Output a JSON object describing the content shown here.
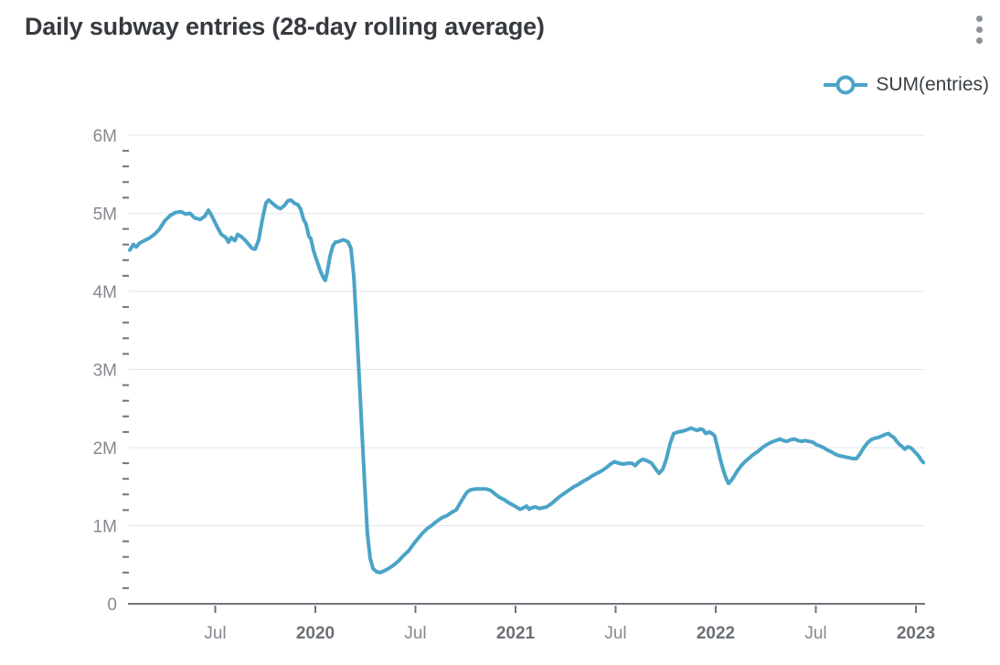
{
  "page": {
    "title": "Daily subway entries (28-day rolling average)",
    "kebab_menu": "more-options"
  },
  "colors": {
    "line": "#4BA4C7",
    "legend_marker": "#4BA4C7",
    "grid": "#E4E6F1",
    "axis": "#6E757C",
    "tick_label": "#85898F",
    "year_label": "#6B7075",
    "title_text": "#363A3F",
    "legend_text": "#3A3F44",
    "kebab_dots": "#8A939A"
  },
  "chart_data": {
    "type": "line",
    "title": "Daily subway entries (28-day rolling average)",
    "xlabel": "",
    "ylabel": "",
    "unit": "millions of entries",
    "grid": "horizontal-major",
    "legend_position": "top-right",
    "x_domain": [
      2019.064,
      2023.037
    ],
    "ylim": [
      0,
      6
    ],
    "y_major_ticks": [
      {
        "v": 0,
        "label": "0"
      },
      {
        "v": 1,
        "label": "1M"
      },
      {
        "v": 2,
        "label": "2M"
      },
      {
        "v": 3,
        "label": "3M"
      },
      {
        "v": 4,
        "label": "4M"
      },
      {
        "v": 5,
        "label": "5M"
      },
      {
        "v": 6,
        "label": "6M"
      }
    ],
    "y_minor_tick_step": 0.2,
    "x_ticks": [
      {
        "t": 2019.5,
        "label": "Jul",
        "bold": false
      },
      {
        "t": 2020.0,
        "label": "2020",
        "bold": true
      },
      {
        "t": 2020.5,
        "label": "Jul",
        "bold": false
      },
      {
        "t": 2021.0,
        "label": "2021",
        "bold": true
      },
      {
        "t": 2021.5,
        "label": "Jul",
        "bold": false
      },
      {
        "t": 2022.0,
        "label": "2022",
        "bold": true
      },
      {
        "t": 2022.5,
        "label": "Jul",
        "bold": false
      },
      {
        "t": 2023.0,
        "label": "2023",
        "bold": true
      }
    ],
    "series": [
      {
        "name": "SUM(entries)",
        "points": [
          [
            2019.073,
            4.53
          ],
          [
            2019.091,
            4.6
          ],
          [
            2019.105,
            4.57
          ],
          [
            2019.123,
            4.62
          ],
          [
            2019.146,
            4.65
          ],
          [
            2019.169,
            4.68
          ],
          [
            2019.196,
            4.73
          ],
          [
            2019.219,
            4.79
          ],
          [
            2019.247,
            4.9
          ],
          [
            2019.274,
            4.97
          ],
          [
            2019.301,
            5.01
          ],
          [
            2019.329,
            5.02
          ],
          [
            2019.352,
            4.99
          ],
          [
            2019.374,
            5.0
          ],
          [
            2019.397,
            4.94
          ],
          [
            2019.425,
            4.92
          ],
          [
            2019.447,
            4.96
          ],
          [
            2019.466,
            5.04
          ],
          [
            2019.484,
            4.96
          ],
          [
            2019.507,
            4.84
          ],
          [
            2019.53,
            4.73
          ],
          [
            2019.553,
            4.69
          ],
          [
            2019.566,
            4.63
          ],
          [
            2019.58,
            4.69
          ],
          [
            2019.598,
            4.65
          ],
          [
            2019.612,
            4.73
          ],
          [
            2019.63,
            4.7
          ],
          [
            2019.648,
            4.66
          ],
          [
            2019.667,
            4.6
          ],
          [
            2019.685,
            4.55
          ],
          [
            2019.699,
            4.54
          ],
          [
            2019.717,
            4.66
          ],
          [
            2019.735,
            4.92
          ],
          [
            2019.753,
            5.13
          ],
          [
            2019.767,
            5.17
          ],
          [
            2019.785,
            5.13
          ],
          [
            2019.808,
            5.08
          ],
          [
            2019.826,
            5.06
          ],
          [
            2019.845,
            5.1
          ],
          [
            2019.863,
            5.16
          ],
          [
            2019.877,
            5.17
          ],
          [
            2019.895,
            5.13
          ],
          [
            2019.913,
            5.11
          ],
          [
            2019.927,
            5.05
          ],
          [
            2019.941,
            4.92
          ],
          [
            2019.954,
            4.86
          ],
          [
            2019.968,
            4.7
          ],
          [
            2019.977,
            4.68
          ],
          [
            2019.991,
            4.52
          ],
          [
            2020.009,
            4.38
          ],
          [
            2020.027,
            4.25
          ],
          [
            2020.041,
            4.17
          ],
          [
            2020.05,
            4.14
          ],
          [
            2020.059,
            4.24
          ],
          [
            2020.073,
            4.45
          ],
          [
            2020.087,
            4.58
          ],
          [
            2020.1,
            4.63
          ],
          [
            2020.119,
            4.64
          ],
          [
            2020.137,
            4.66
          ],
          [
            2020.151,
            4.65
          ],
          [
            2020.164,
            4.63
          ],
          [
            2020.178,
            4.55
          ],
          [
            2020.192,
            4.2
          ],
          [
            2020.205,
            3.6
          ],
          [
            2020.219,
            2.9
          ],
          [
            2020.233,
            2.2
          ],
          [
            2020.247,
            1.5
          ],
          [
            2020.26,
            0.9
          ],
          [
            2020.274,
            0.58
          ],
          [
            2020.288,
            0.45
          ],
          [
            2020.306,
            0.41
          ],
          [
            2020.324,
            0.4
          ],
          [
            2020.342,
            0.42
          ],
          [
            2020.365,
            0.45
          ],
          [
            2020.388,
            0.49
          ],
          [
            2020.416,
            0.55
          ],
          [
            2020.438,
            0.61
          ],
          [
            2020.466,
            0.68
          ],
          [
            2020.489,
            0.76
          ],
          [
            2020.511,
            0.83
          ],
          [
            2020.534,
            0.9
          ],
          [
            2020.557,
            0.96
          ],
          [
            2020.58,
            1.0
          ],
          [
            2020.603,
            1.05
          ],
          [
            2020.63,
            1.1
          ],
          [
            2020.658,
            1.13
          ],
          [
            2020.68,
            1.17
          ],
          [
            2020.703,
            1.2
          ],
          [
            2020.721,
            1.28
          ],
          [
            2020.74,
            1.36
          ],
          [
            2020.758,
            1.43
          ],
          [
            2020.776,
            1.46
          ],
          [
            2020.799,
            1.47
          ],
          [
            2020.826,
            1.47
          ],
          [
            2020.854,
            1.47
          ],
          [
            2020.877,
            1.45
          ],
          [
            2020.9,
            1.4
          ],
          [
            2020.922,
            1.36
          ],
          [
            2020.945,
            1.33
          ],
          [
            2020.968,
            1.29
          ],
          [
            2020.991,
            1.26
          ],
          [
            2021.009,
            1.23
          ],
          [
            2021.023,
            1.21
          ],
          [
            2021.041,
            1.23
          ],
          [
            2021.055,
            1.25
          ],
          [
            2021.068,
            1.21
          ],
          [
            2021.082,
            1.23
          ],
          [
            2021.1,
            1.24
          ],
          [
            2021.119,
            1.22
          ],
          [
            2021.137,
            1.23
          ],
          [
            2021.155,
            1.24
          ],
          [
            2021.178,
            1.28
          ],
          [
            2021.201,
            1.33
          ],
          [
            2021.224,
            1.38
          ],
          [
            2021.247,
            1.42
          ],
          [
            2021.269,
            1.46
          ],
          [
            2021.292,
            1.5
          ],
          [
            2021.315,
            1.53
          ],
          [
            2021.338,
            1.57
          ],
          [
            2021.361,
            1.6
          ],
          [
            2021.384,
            1.64
          ],
          [
            2021.406,
            1.67
          ],
          [
            2021.429,
            1.7
          ],
          [
            2021.452,
            1.74
          ],
          [
            2021.475,
            1.79
          ],
          [
            2021.493,
            1.82
          ],
          [
            2021.516,
            1.8
          ],
          [
            2021.539,
            1.79
          ],
          [
            2021.562,
            1.8
          ],
          [
            2021.58,
            1.8
          ],
          [
            2021.598,
            1.77
          ],
          [
            2021.616,
            1.82
          ],
          [
            2021.635,
            1.85
          ],
          [
            2021.658,
            1.83
          ],
          [
            2021.68,
            1.8
          ],
          [
            2021.699,
            1.73
          ],
          [
            2021.717,
            1.67
          ],
          [
            2021.735,
            1.72
          ],
          [
            2021.753,
            1.85
          ],
          [
            2021.772,
            2.05
          ],
          [
            2021.79,
            2.18
          ],
          [
            2021.813,
            2.2
          ],
          [
            2021.836,
            2.21
          ],
          [
            2021.858,
            2.23
          ],
          [
            2021.877,
            2.25
          ],
          [
            2021.895,
            2.23
          ],
          [
            2021.909,
            2.22
          ],
          [
            2021.922,
            2.24
          ],
          [
            2021.936,
            2.23
          ],
          [
            2021.95,
            2.18
          ],
          [
            2021.968,
            2.2
          ],
          [
            2021.982,
            2.18
          ],
          [
            2021.995,
            2.15
          ],
          [
            2022.009,
            2.0
          ],
          [
            2022.023,
            1.85
          ],
          [
            2022.037,
            1.72
          ],
          [
            2022.05,
            1.62
          ],
          [
            2022.064,
            1.54
          ],
          [
            2022.078,
            1.58
          ],
          [
            2022.091,
            1.63
          ],
          [
            2022.11,
            1.71
          ],
          [
            2022.128,
            1.77
          ],
          [
            2022.146,
            1.82
          ],
          [
            2022.164,
            1.86
          ],
          [
            2022.187,
            1.91
          ],
          [
            2022.21,
            1.95
          ],
          [
            2022.233,
            2.0
          ],
          [
            2022.256,
            2.04
          ],
          [
            2022.279,
            2.07
          ],
          [
            2022.301,
            2.09
          ],
          [
            2022.32,
            2.11
          ],
          [
            2022.338,
            2.09
          ],
          [
            2022.356,
            2.08
          ],
          [
            2022.374,
            2.1
          ],
          [
            2022.393,
            2.11
          ],
          [
            2022.411,
            2.09
          ],
          [
            2022.429,
            2.08
          ],
          [
            2022.447,
            2.09
          ],
          [
            2022.466,
            2.08
          ],
          [
            2022.484,
            2.07
          ],
          [
            2022.502,
            2.04
          ],
          [
            2022.521,
            2.02
          ],
          [
            2022.539,
            2.0
          ],
          [
            2022.557,
            1.97
          ],
          [
            2022.575,
            1.95
          ],
          [
            2022.594,
            1.92
          ],
          [
            2022.612,
            1.9
          ],
          [
            2022.63,
            1.89
          ],
          [
            2022.648,
            1.88
          ],
          [
            2022.667,
            1.87
          ],
          [
            2022.685,
            1.86
          ],
          [
            2022.703,
            1.86
          ],
          [
            2022.721,
            1.92
          ],
          [
            2022.74,
            2.0
          ],
          [
            2022.758,
            2.06
          ],
          [
            2022.776,
            2.1
          ],
          [
            2022.795,
            2.12
          ],
          [
            2022.813,
            2.13
          ],
          [
            2022.831,
            2.15
          ],
          [
            2022.849,
            2.17
          ],
          [
            2022.863,
            2.18
          ],
          [
            2022.877,
            2.15
          ],
          [
            2022.89,
            2.13
          ],
          [
            2022.904,
            2.08
          ],
          [
            2022.918,
            2.04
          ],
          [
            2022.932,
            2.01
          ],
          [
            2022.945,
            1.98
          ],
          [
            2022.959,
            2.01
          ],
          [
            2022.973,
            2.0
          ],
          [
            2022.986,
            1.97
          ],
          [
            2023.0,
            1.93
          ],
          [
            2023.014,
            1.89
          ],
          [
            2023.027,
            1.84
          ],
          [
            2023.037,
            1.81
          ]
        ]
      }
    ]
  }
}
